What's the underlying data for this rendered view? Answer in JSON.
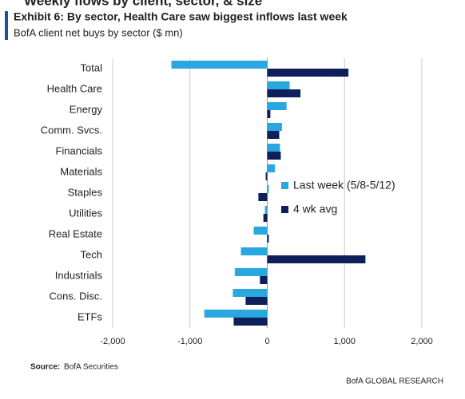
{
  "chart_data": {
    "type": "hbar",
    "supertitle": "Weekly flows by client, sector, & size",
    "title": "Exhibit 6: By sector, Health Care saw biggest inflows last week",
    "subtitle": "BofA client net buys by sector ($ mn)",
    "categories": [
      "Total",
      "Health Care",
      "Energy",
      "Comm. Svcs.",
      "Financials",
      "Materials",
      "Staples",
      "Utilities",
      "Real Estate",
      "Tech",
      "Industrials",
      "Cons. Disc.",
      "ETFs"
    ],
    "series": [
      {
        "name": "Last week (5/8-5/12)",
        "color": "#29a8e0",
        "values": [
          -1240,
          290,
          250,
          190,
          165,
          100,
          20,
          -30,
          -175,
          -340,
          -420,
          -445,
          -815
        ]
      },
      {
        "name": "4 wk avg",
        "color": "#0f1f5c",
        "values": [
          1050,
          430,
          40,
          155,
          175,
          -20,
          -115,
          -50,
          20,
          1270,
          -95,
          -280,
          -435
        ]
      }
    ],
    "xlim": [
      -2000,
      2000
    ],
    "xticks": [
      {
        "value": -2000,
        "label": "-2,000"
      },
      {
        "value": -1000,
        "label": "-1,000"
      },
      0,
      {
        "value": 1000,
        "label": "1,000"
      },
      {
        "value": 2000,
        "label": "2,000"
      }
    ],
    "grid": true,
    "legend": "right",
    "source_label": "Source:",
    "source": "BofA Securities",
    "footer": "BofA GLOBAL RESEARCH"
  }
}
